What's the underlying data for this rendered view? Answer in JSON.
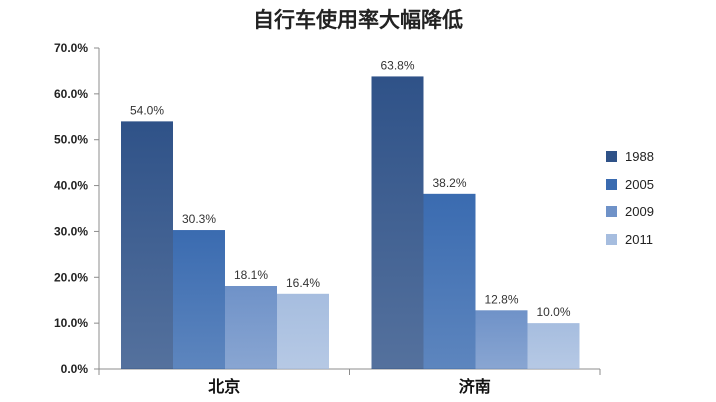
{
  "chart_data": {
    "type": "bar",
    "title": "自行车使用率大幅降低",
    "categories": [
      "北京",
      "济南"
    ],
    "series": [
      {
        "name": "1988",
        "values": [
          54.0,
          63.8
        ],
        "labels": [
          "54.0%",
          "63.8%"
        ],
        "color": "#2F5288"
      },
      {
        "name": "2005",
        "values": [
          30.3,
          38.2
        ],
        "labels": [
          "30.3%",
          "38.2%"
        ],
        "color": "#3A6BB0"
      },
      {
        "name": "2009",
        "values": [
          18.1,
          12.8
        ],
        "labels": [
          "18.1%",
          "12.8%"
        ],
        "color": "#6F92C8"
      },
      {
        "name": "2011",
        "values": [
          16.4,
          10.0
        ],
        "labels": [
          "16.4%",
          "10.0%"
        ],
        "color": "#A6BDDF"
      }
    ],
    "y_ticks": [
      "0.0%",
      "10.0%",
      "20.0%",
      "30.0%",
      "40.0%",
      "50.0%",
      "60.0%",
      "70.0%"
    ],
    "ylim": [
      0,
      70
    ],
    "grid": false,
    "legend_position": "right"
  }
}
